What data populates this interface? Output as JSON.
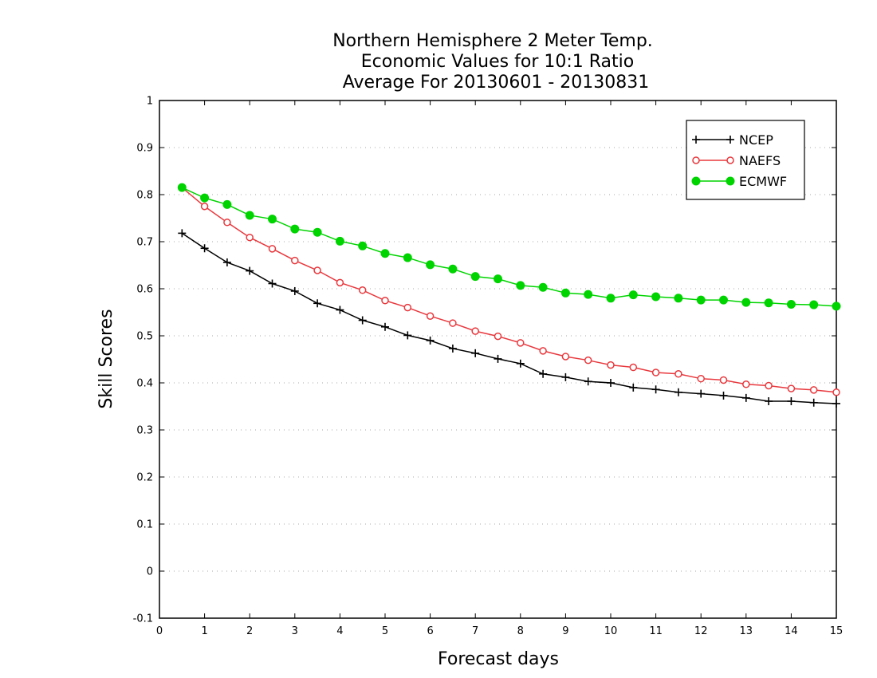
{
  "chart_data": {
    "type": "line",
    "title": [
      "Northern Hemisphere 2 Meter Temp.",
      "Economic Values for 10:1 Ratio",
      "Average For 20130601 - 20130831"
    ],
    "xlabel": "Forecast days",
    "ylabel": "Skill Scores",
    "xlim": [
      0,
      15
    ],
    "ylim": [
      -0.1,
      1
    ],
    "xticks": [
      0,
      1,
      2,
      3,
      4,
      5,
      6,
      7,
      8,
      9,
      10,
      11,
      12,
      13,
      14,
      15
    ],
    "yticks": [
      -0.1,
      0,
      0.1,
      0.2,
      0.3,
      0.4,
      0.5,
      0.6,
      0.7,
      0.8,
      0.9,
      1
    ],
    "ytick_labels": [
      "-0.1",
      "0",
      "0.1",
      "0.2",
      "0.3",
      "0.4",
      "0.5",
      "0.6",
      "0.7",
      "0.8",
      "0.9",
      "1"
    ],
    "grid": "horizontal-dotted",
    "legend_position": "top-right",
    "x": [
      0.5,
      1,
      1.5,
      2,
      2.5,
      3,
      3.5,
      4,
      4.5,
      5,
      5.5,
      6,
      6.5,
      7,
      7.5,
      8,
      8.5,
      9,
      9.5,
      10,
      10.5,
      11,
      11.5,
      12,
      12.5,
      13,
      13.5,
      14,
      14.5,
      15
    ],
    "series": [
      {
        "name": "NCEP",
        "color": "#000000",
        "marker": "plus",
        "values": [
          0.718,
          0.686,
          0.656,
          0.638,
          0.611,
          0.595,
          0.569,
          0.555,
          0.533,
          0.519,
          0.501,
          0.49,
          0.473,
          0.463,
          0.451,
          0.441,
          0.419,
          0.412,
          0.403,
          0.4,
          0.39,
          0.386,
          0.38,
          0.377,
          0.373,
          0.368,
          0.361,
          0.361,
          0.358,
          0.356
        ]
      },
      {
        "name": "NAEFS",
        "color": "#e8383d",
        "marker": "open-circle",
        "values": [
          0.815,
          0.775,
          0.741,
          0.709,
          0.685,
          0.66,
          0.639,
          0.613,
          0.597,
          0.575,
          0.56,
          0.542,
          0.527,
          0.51,
          0.499,
          0.485,
          0.468,
          0.456,
          0.448,
          0.438,
          0.433,
          0.422,
          0.419,
          0.409,
          0.406,
          0.397,
          0.394,
          0.388,
          0.385,
          0.38
        ]
      },
      {
        "name": "ECMWF",
        "color": "#00d400",
        "marker": "filled-circle",
        "values": [
          0.815,
          0.793,
          0.779,
          0.756,
          0.748,
          0.727,
          0.72,
          0.701,
          0.691,
          0.675,
          0.666,
          0.651,
          0.642,
          0.626,
          0.621,
          0.607,
          0.603,
          0.591,
          0.588,
          0.58,
          0.587,
          0.583,
          0.58,
          0.576,
          0.576,
          0.571,
          0.57,
          0.567,
          0.566,
          0.563
        ]
      }
    ]
  }
}
